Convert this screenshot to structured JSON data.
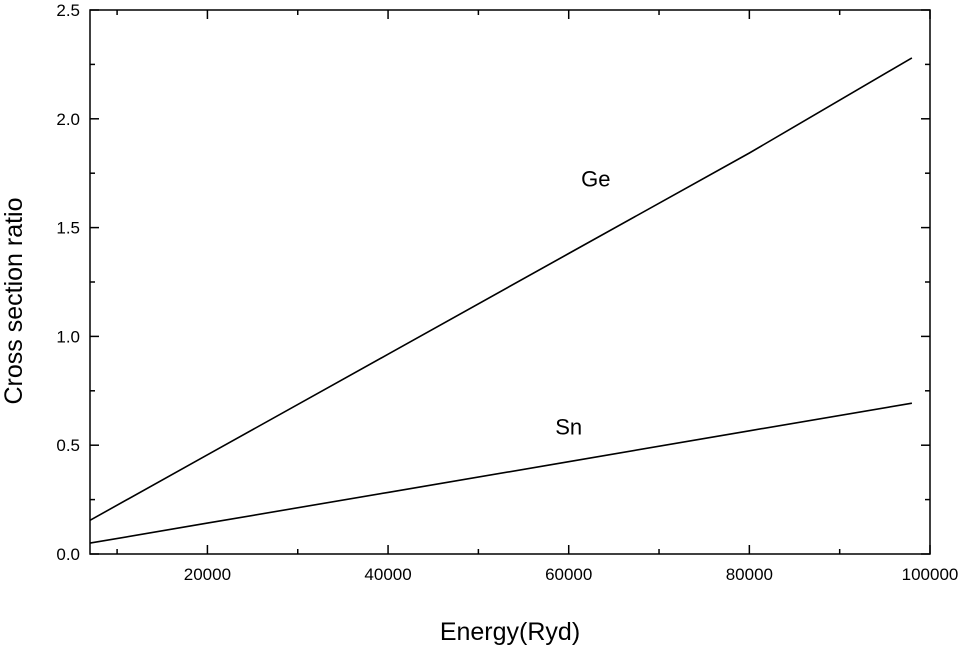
{
  "chart_data": {
    "type": "line",
    "title": "",
    "xlabel": "Energy(Ryd)",
    "ylabel": "Cross section ratio",
    "xlim": [
      7000,
      100000
    ],
    "ylim": [
      0,
      2.5
    ],
    "x_major_ticks": [
      20000,
      40000,
      60000,
      80000,
      100000
    ],
    "x_minor_ticks": [
      10000,
      30000,
      50000,
      70000,
      90000
    ],
    "y_major_ticks": [
      0.0,
      0.5,
      1.0,
      1.5,
      2.0,
      2.5
    ],
    "y_minor_ticks": [
      0.25,
      0.75,
      1.25,
      1.75,
      2.25
    ],
    "x_tick_labels": [
      "20000",
      "40000",
      "60000",
      "80000",
      "100000"
    ],
    "y_tick_labels": [
      "0.0",
      "0.5",
      "1.0",
      "1.5",
      "2.0",
      "2.5"
    ],
    "grid": false,
    "legend": "none",
    "series": [
      {
        "name": "Ge",
        "color": "#000000",
        "x": [
          7000,
          20000,
          40000,
          60000,
          80000,
          98000
        ],
        "y": [
          0.155,
          0.456,
          0.918,
          1.381,
          1.843,
          2.28
        ]
      },
      {
        "name": "Sn",
        "color": "#000000",
        "x": [
          7000,
          20000,
          40000,
          60000,
          80000,
          98000
        ],
        "y": [
          0.05,
          0.142,
          0.283,
          0.424,
          0.566,
          0.693
        ]
      }
    ],
    "annotations": [
      {
        "text": "Ge",
        "x": 63000,
        "y": 1.69
      },
      {
        "text": "Sn",
        "x": 60000,
        "y": 0.55
      }
    ]
  }
}
